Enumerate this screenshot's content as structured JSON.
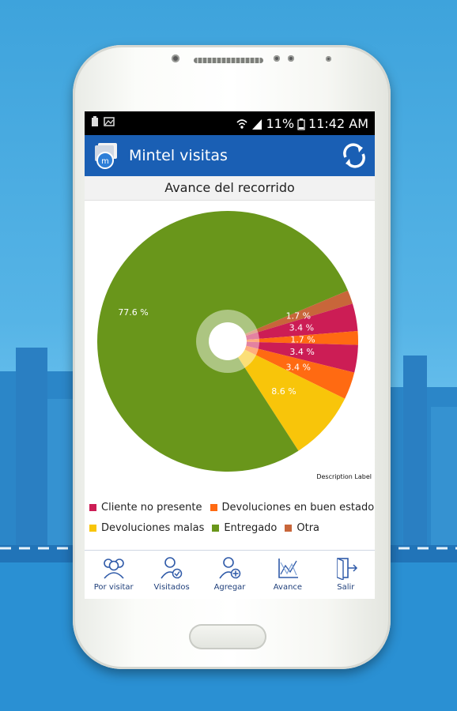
{
  "status": {
    "signal": "11%",
    "time": "11:42 AM"
  },
  "app": {
    "title": "Mintel visitas"
  },
  "chart_title": "Avance del recorrido",
  "chart_data": {
    "type": "pie",
    "title": "Avance del recorrido",
    "description_label": "Description Label",
    "slices": [
      {
        "label": "Otra",
        "value": 1.7,
        "text": "1.7 %",
        "color": "#c8663a"
      },
      {
        "label": "Cliente no presente",
        "value": 3.4,
        "text": "3.4 %",
        "color": "#cc1d55"
      },
      {
        "label": "Devoluciones en buen estado",
        "value": 1.7,
        "text": "1.7 %",
        "color": "#ff6a12"
      },
      {
        "label": "Cliente no presente",
        "value": 3.4,
        "text": "3.4 %",
        "color": "#cc1d55"
      },
      {
        "label": "Devoluciones en buen estado",
        "value": 3.4,
        "text": "3.4 %",
        "color": "#ff6a12"
      },
      {
        "label": "Devoluciones malas",
        "value": 8.6,
        "text": "8.6 %",
        "color": "#f8c50a"
      },
      {
        "label": "Entregado",
        "value": 77.6,
        "text": "77.6 %",
        "color": "#69961b"
      }
    ]
  },
  "legend": [
    {
      "label": "Cliente no presente",
      "color": "#cc1d55"
    },
    {
      "label": "Devoluciones en buen estado",
      "color": "#ff6a12"
    },
    {
      "label": "Devoluciones malas",
      "color": "#f8c50a"
    },
    {
      "label": "Entregado",
      "color": "#69961b"
    },
    {
      "label": "Otra",
      "color": "#c8663a"
    }
  ],
  "nav": [
    {
      "label": "Por visitar",
      "icon": "users-group-icon"
    },
    {
      "label": "Visitados",
      "icon": "user-check-icon"
    },
    {
      "label": "Agregar",
      "icon": "user-add-icon"
    },
    {
      "label": "Avance",
      "icon": "chart-icon"
    },
    {
      "label": "Salir",
      "icon": "exit-door-icon"
    }
  ]
}
